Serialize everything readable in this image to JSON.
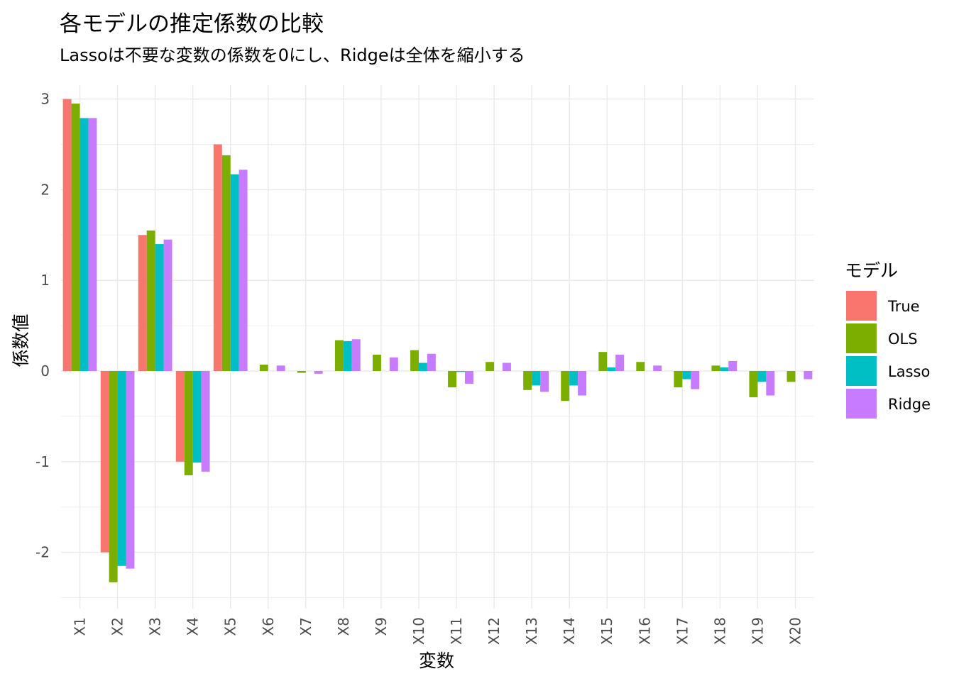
{
  "chart_data": {
    "type": "bar",
    "title": "各モデルの推定係数の比較",
    "subtitle": "Lassoは不要な変数の係数を0にし、Ridgeは全体を縮小する",
    "xlabel": "変数",
    "ylabel": "係数値",
    "categories": [
      "X1",
      "X2",
      "X3",
      "X4",
      "X5",
      "X6",
      "X7",
      "X8",
      "X9",
      "X10",
      "X11",
      "X12",
      "X13",
      "X14",
      "X15",
      "X16",
      "X17",
      "X18",
      "X19",
      "X20"
    ],
    "y_ticks": [
      "-2",
      "-1",
      "0",
      "1",
      "2",
      "3"
    ],
    "ylim": [
      -2.5,
      3.0
    ],
    "grid": true,
    "legend": {
      "title": "モデル",
      "position": "right"
    },
    "series": [
      {
        "name": "True",
        "color": "#F8766D",
        "values": [
          3.0,
          -2.0,
          1.5,
          -1.0,
          2.5,
          0,
          0,
          0,
          0,
          0,
          0,
          0,
          0,
          0,
          0,
          0,
          0,
          0,
          0,
          0
        ]
      },
      {
        "name": "OLS",
        "color": "#7CAE00",
        "values": [
          2.95,
          -2.33,
          1.55,
          -1.15,
          2.38,
          0.07,
          -0.02,
          0.34,
          0.18,
          0.23,
          -0.18,
          0.1,
          -0.21,
          -0.33,
          0.21,
          0.1,
          -0.18,
          0.06,
          -0.29,
          -0.12
        ]
      },
      {
        "name": "Lasso",
        "color": "#00BFC4",
        "values": [
          2.79,
          -2.15,
          1.4,
          -1.01,
          2.17,
          0,
          0,
          0.33,
          0,
          0.09,
          -0.01,
          0,
          -0.16,
          -0.16,
          0.04,
          0,
          -0.09,
          0.04,
          -0.12,
          0
        ]
      },
      {
        "name": "Ridge",
        "color": "#C77CFF",
        "values": [
          2.79,
          -2.18,
          1.45,
          -1.11,
          2.22,
          0.06,
          -0.03,
          0.35,
          0.15,
          0.19,
          -0.14,
          0.09,
          -0.23,
          -0.27,
          0.18,
          0.06,
          -0.2,
          0.11,
          -0.27,
          -0.09
        ]
      }
    ]
  }
}
